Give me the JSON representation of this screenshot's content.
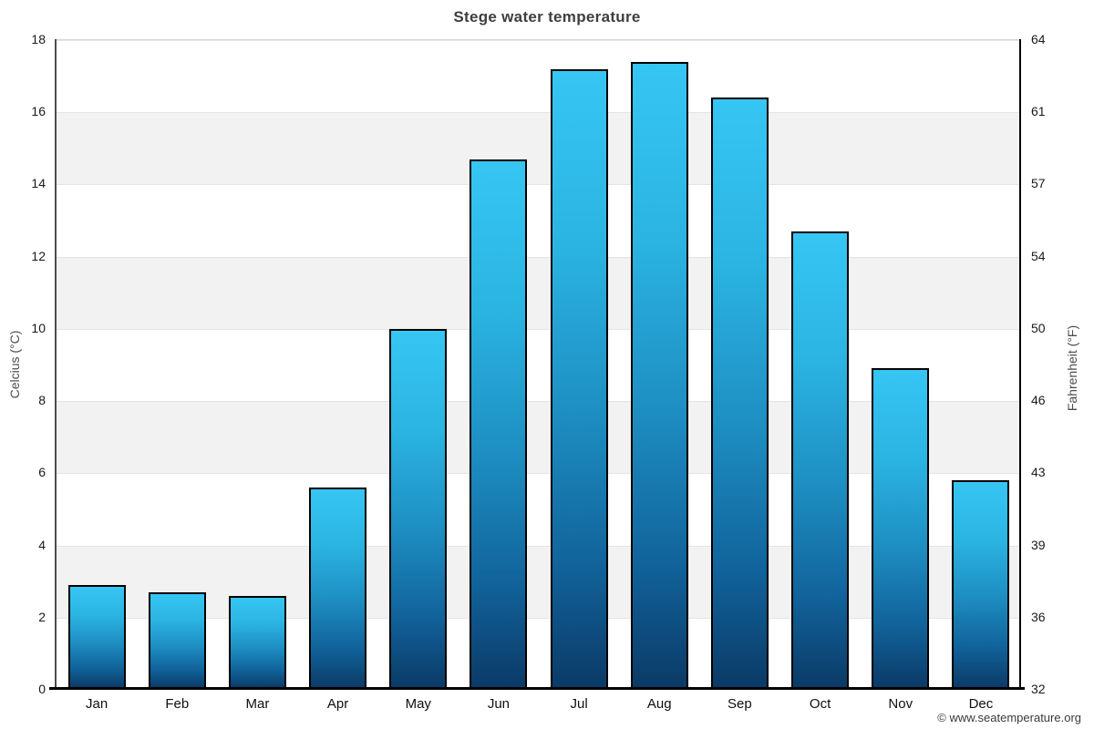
{
  "title": "Stege water temperature",
  "credit": "© www.seatemperature.org",
  "axes": {
    "left_title": "Celcius (°C)",
    "right_title": "Fahrenheit (°F)"
  },
  "chart_data": {
    "type": "bar",
    "title": "Stege water temperature",
    "categories": [
      "Jan",
      "Feb",
      "Mar",
      "Apr",
      "May",
      "Jun",
      "Jul",
      "Aug",
      "Sep",
      "Oct",
      "Nov",
      "Dec"
    ],
    "values": [
      2.9,
      2.7,
      2.6,
      5.6,
      10.0,
      14.7,
      17.2,
      17.4,
      16.4,
      12.7,
      8.9,
      5.8
    ],
    "xlabel": "",
    "ylabel_left": "Celcius (°C)",
    "ylabel_right": "Fahrenheit (°F)",
    "ylim": [
      0,
      18
    ],
    "y_ticks": [
      {
        "v": 0,
        "c": "0",
        "f": "32"
      },
      {
        "v": 2,
        "c": "2",
        "f": "36"
      },
      {
        "v": 4,
        "c": "4",
        "f": "39"
      },
      {
        "v": 6,
        "c": "6",
        "f": "43"
      },
      {
        "v": 8,
        "c": "8",
        "f": "46"
      },
      {
        "v": 10,
        "c": "10",
        "f": "50"
      },
      {
        "v": 12,
        "c": "12",
        "f": "54"
      },
      {
        "v": 14,
        "c": "14",
        "f": "57"
      },
      {
        "v": 16,
        "c": "16",
        "f": "61"
      },
      {
        "v": 18,
        "c": "18",
        "f": "64"
      }
    ],
    "grid": "alternating horizontal bands every 2 units, gray on 2-4 / 6-8 / 10-12 / 14-16",
    "legend": "none",
    "colors": {
      "bar_top": "#36C6F4",
      "bar_bottom": "#0B3A66",
      "bar_border": "#000000",
      "band_gray": "#F2F2F2",
      "gridline": "#E4E4E4",
      "title_text": "#3F3F3F",
      "tick_text": "#1A1A1A",
      "axis_title_text": "#4D4D4D"
    }
  }
}
